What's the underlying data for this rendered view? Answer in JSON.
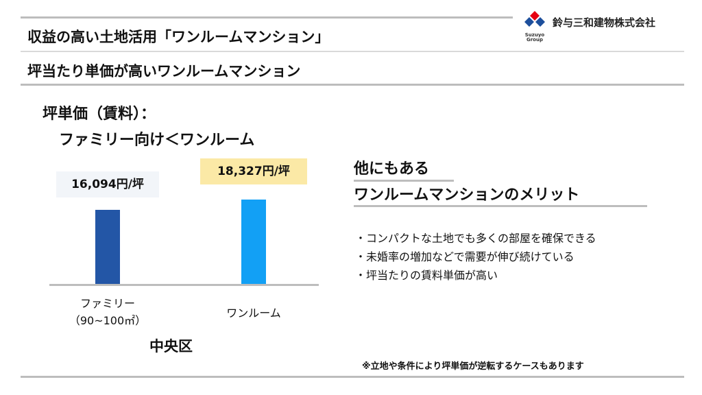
{
  "header": {
    "title": "収益の高い土地活用「ワンルームマンション」",
    "subtitle": "坪当たり単価が高いワンルームマンション"
  },
  "logo": {
    "company": "鈴与三和建物株式会社",
    "brand_line1": "Suzuyo",
    "brand_line2": "Group",
    "colors": {
      "red": "#e60012",
      "blue": "#1d4f9c"
    }
  },
  "chart": {
    "heading_line1": "坪単価（賃料）：",
    "heading_line2": "ファミリー向け＜ワンルーム",
    "region_label": "中央区"
  },
  "chart_data": {
    "type": "bar",
    "categories": [
      "ファミリー（90~100㎡）",
      "ワンルーム"
    ],
    "category_line1": [
      "ファミリー",
      "ワンルーム"
    ],
    "category_line2": [
      "（90~100㎡）",
      ""
    ],
    "values": [
      16094,
      18327
    ],
    "data_labels": [
      "16,094円/坪",
      "18,327円/坪"
    ],
    "colors": [
      "#2356a6",
      "#12a0f5"
    ],
    "ylim": [
      0,
      20000
    ],
    "title": "",
    "xlabel": "",
    "ylabel": "",
    "grid": false
  },
  "merits": {
    "heading_line1": "他にもある",
    "heading_line2": "ワンルームマンションのメリット",
    "items": [
      "・コンパクトな土地でも多くの部屋を確保できる",
      "・未婚率の増加などで需要が伸び続けている",
      "・坪当たりの賃料単価が高い"
    ]
  },
  "footnote": "※立地や条件により坪単価が逆転するケースもあります"
}
